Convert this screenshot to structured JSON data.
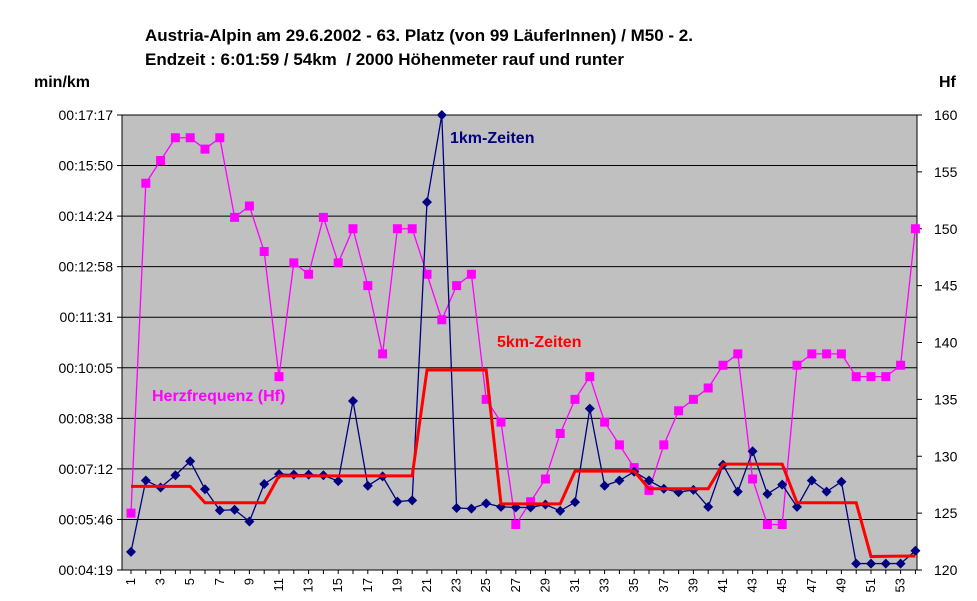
{
  "chart_data": {
    "type": "line",
    "title": "Austria-Alpin am 29.6.2002 - 63. Platz (von 99 LäuferInnen) / M50 - 2.",
    "subtitle": "Endzeit : 6:01:59 / 54km  / 2000 Höhenmeter rauf und runter",
    "ylabel_left": "min/km",
    "ylabel_right": "Hf",
    "y_left_ticks": [
      "00:04:19",
      "00:05:46",
      "00:07:12",
      "00:08:38",
      "00:10:05",
      "00:11:31",
      "00:12:58",
      "00:14:24",
      "00:15:50",
      "00:17:17"
    ],
    "y_left_range_seconds": [
      259,
      1037
    ],
    "y_right_ticks": [
      120,
      125,
      130,
      135,
      140,
      145,
      150,
      155,
      160
    ],
    "y_right_range": [
      120,
      160
    ],
    "x": [
      1,
      2,
      3,
      4,
      5,
      6,
      7,
      8,
      9,
      10,
      11,
      12,
      13,
      14,
      15,
      16,
      17,
      18,
      19,
      20,
      21,
      22,
      23,
      24,
      25,
      26,
      27,
      28,
      29,
      30,
      31,
      32,
      33,
      34,
      35,
      36,
      37,
      38,
      39,
      40,
      41,
      42,
      43,
      44,
      45,
      46,
      47,
      48,
      49,
      50,
      51,
      52,
      53,
      54
    ],
    "x_tick_labels": [
      "1",
      "3",
      "5",
      "7",
      "9",
      "11",
      "13",
      "15",
      "17",
      "19",
      "21",
      "23",
      "25",
      "27",
      "29",
      "31",
      "33",
      "35",
      "37",
      "39",
      "41",
      "43",
      "45",
      "47",
      "49",
      "51",
      "53"
    ],
    "grid": true,
    "colors": {
      "plot_bg": "#c0c0c0",
      "grid": "#000000",
      "km": "#000080",
      "hr": "#ff00ff",
      "five_km": "#ff0000"
    },
    "series": [
      {
        "name": "1km-Zeiten",
        "axis": "left",
        "unit": "seconds per km",
        "values": [
          290,
          412,
          400,
          421,
          445,
          397,
          361,
          362,
          342,
          406,
          423,
          422,
          422,
          421,
          411,
          548,
          403,
          419,
          376,
          378,
          888,
          1037,
          365,
          364,
          373,
          367,
          366,
          366,
          371,
          360,
          375,
          535,
          403,
          412,
          427,
          412,
          398,
          392,
          396,
          367,
          439,
          393,
          462,
          389,
          405,
          367,
          412,
          393,
          410,
          270,
          270,
          270,
          270,
          292
        ]
      },
      {
        "name": "Herzfrequenz (Hf)",
        "axis": "right",
        "unit": "bpm",
        "values": [
          125,
          154,
          156,
          158,
          158,
          157,
          158,
          151,
          152,
          148,
          137,
          147,
          146,
          151,
          147,
          150,
          145,
          139,
          150,
          150,
          146,
          142,
          145,
          146,
          135,
          133,
          124,
          126,
          128,
          132,
          135,
          137,
          133,
          131,
          129,
          127,
          131,
          134,
          135,
          136,
          138,
          139,
          128,
          124,
          124,
          138,
          139,
          139,
          139,
          137,
          137,
          137,
          138,
          150
        ]
      },
      {
        "name": "5km-Zeiten",
        "axis": "left",
        "unit": "seconds per km",
        "points": [
          [
            1,
            402
          ],
          [
            5,
            402
          ],
          [
            6,
            374
          ],
          [
            10,
            374
          ],
          [
            11,
            420
          ],
          [
            20,
            420
          ],
          [
            21,
            601
          ],
          [
            25,
            601
          ],
          [
            26,
            372
          ],
          [
            30,
            372
          ],
          [
            31,
            428
          ],
          [
            35,
            428
          ],
          [
            36,
            398
          ],
          [
            40,
            398
          ],
          [
            41,
            440
          ],
          [
            45,
            440
          ],
          [
            46,
            374
          ],
          [
            50,
            374
          ],
          [
            51,
            282
          ],
          [
            54,
            283
          ]
        ]
      }
    ]
  }
}
